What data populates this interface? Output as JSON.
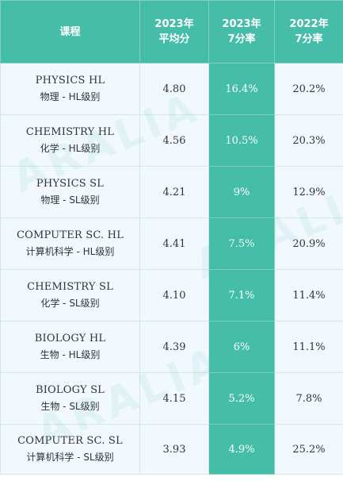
{
  "watermark": "ARALIA",
  "header": {
    "course": "课程",
    "avg_2023": [
      "2023年",
      "平均分"
    ],
    "rate_2023": [
      "2023年",
      "7分率"
    ],
    "rate_2022": [
      "2022年",
      "7分率"
    ]
  },
  "rows": [
    {
      "en": "PHYSICS HL",
      "cn": "物理 - HL级别",
      "avg": "4.80",
      "r23": "16.4%",
      "r22": "20.2%"
    },
    {
      "en": "CHEMISTRY HL",
      "cn": "化学 - HL级别",
      "avg": "4.56",
      "r23": "10.5%",
      "r22": "20.3%"
    },
    {
      "en": "PHYSICS SL",
      "cn": "物理 - SL级别",
      "avg": "4.21",
      "r23": "9%",
      "r22": "12.9%"
    },
    {
      "en": "COMPUTER SC. HL",
      "cn": "计算机科学 - HL级别",
      "avg": "4.41",
      "r23": "7.5%",
      "r22": "20.9%"
    },
    {
      "en": "CHEMISTRY SL",
      "cn": "化学 - SL级别",
      "avg": "4.10",
      "r23": "7.1%",
      "r22": "11.4%"
    },
    {
      "en": "BIOLOGY HL",
      "cn": "生物 - HL级别",
      "avg": "4.39",
      "r23": "6%",
      "r22": "11.1%"
    },
    {
      "en": "BIOLOGY SL",
      "cn": "生物 - SL级别",
      "avg": "4.15",
      "r23": "5.2%",
      "r22": "7.8%"
    },
    {
      "en": "COMPUTER SC. SL",
      "cn": "计算机科学 - SL级别",
      "avg": "3.93",
      "r23": "4.9%",
      "r22": "25.2%"
    }
  ]
}
